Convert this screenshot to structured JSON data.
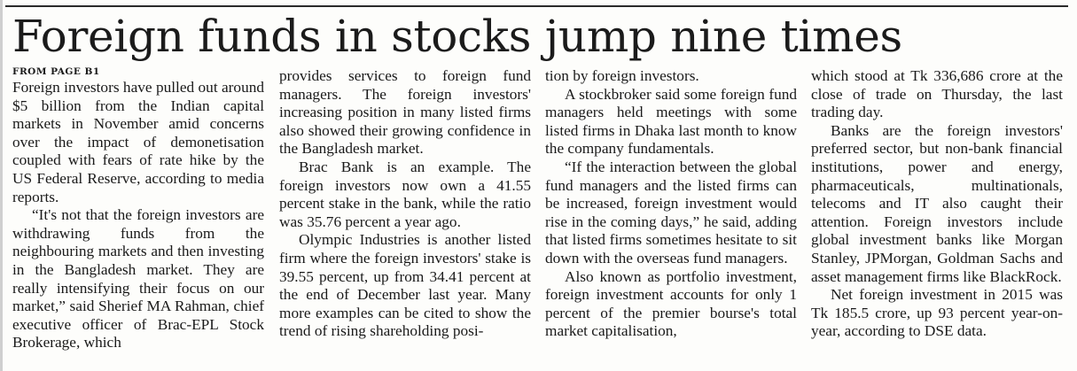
{
  "article": {
    "headline": "Foreign funds in stocks jump nine times",
    "kicker": "FROM PAGE B1",
    "columns": [
      {
        "paragraphs": [
          "Foreign investors have pulled out around $5 billion from the Indian capital markets in November amid concerns over the impact of demonetisation coupled with fears of rate hike by the US Federal Reserve, according to media reports.",
          "“It's not that the foreign investors are withdrawing funds from the neighbouring markets and then investing in the Bangladesh market. They are really intensifying their focus on our market,” said Sherief MA Rahman, chief executive officer of Brac-EPL Stock Brokerage, which"
        ]
      },
      {
        "paragraphs": [
          "provides services to foreign fund managers. The foreign investors' increasing position in many listed firms also showed their growing confidence in the Bangladesh market.",
          "Brac Bank is an example. The foreign investors now own a 41.55 percent stake in the bank, while the ratio was 35.76 percent a year ago.",
          "Olympic Industries is another listed firm where the foreign investors' stake is 39.55 percent, up from 34.41 percent at the end of December last year. Many more examples can be cited to show the trend of rising shareholding posi-"
        ]
      },
      {
        "paragraphs": [
          "tion by foreign investors.",
          "A stockbroker said some foreign fund managers held meetings with some listed firms in Dhaka last month to know the company fundamentals.",
          "“If the interaction between the global fund managers and the listed firms can be increased, foreign investment would rise in the coming days,” he said, adding that listed firms sometimes hesitate to sit down with the overseas fund managers.",
          "Also known as portfolio investment, foreign investment accounts for only 1 percent of the premier bourse's total market capitalisation,"
        ]
      },
      {
        "paragraphs": [
          "which stood at Tk 336,686 crore at the close of trade on Thursday, the last trading day.",
          "Banks are the foreign investors' preferred sector, but non-bank financial institutions, power and energy, pharmaceuticals, multinationals, telecoms and IT also caught their attention. Foreign investors include global investment banks like Morgan Stanley, JPMorgan, Goldman Sachs and asset management firms like BlackRock.",
          "Net foreign investment in 2015 was Tk 185.5 crore, up 93 percent year-on-year, according to DSE data."
        ]
      }
    ]
  }
}
